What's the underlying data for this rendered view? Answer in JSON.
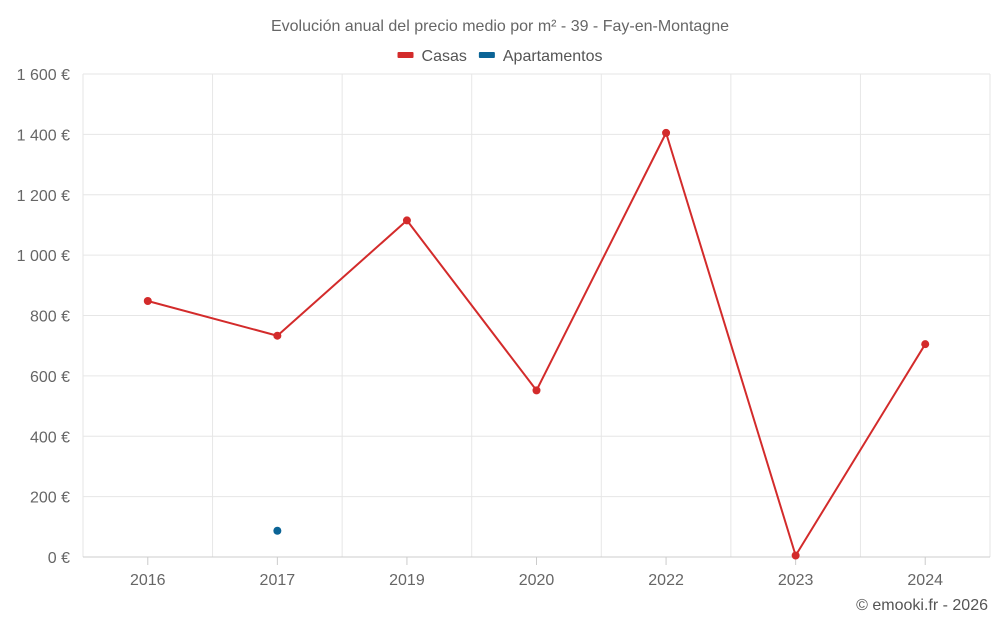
{
  "chart_data": {
    "type": "line",
    "title": "Evolución anual del precio medio por m² - 39 - Fay-en-Montagne",
    "categories": [
      "2016",
      "2017",
      "2019",
      "2020",
      "2022",
      "2023",
      "2024"
    ],
    "series": [
      {
        "name": "Casas",
        "color": "#d32b2b",
        "values": [
          848,
          733,
          1115,
          552,
          1405,
          5,
          705
        ]
      },
      {
        "name": "Apartamentos",
        "color": "#0b6496",
        "values": [
          null,
          87,
          null,
          null,
          null,
          null,
          null
        ]
      }
    ],
    "ylim": [
      0,
      1600
    ],
    "yticks": [
      0,
      200,
      400,
      600,
      800,
      1000,
      1200,
      1400,
      1600
    ],
    "ytick_labels": [
      "0 €",
      "200 €",
      "400 €",
      "600 €",
      "800 €",
      "1 000 €",
      "1 200 €",
      "1 400 €",
      "1 600 €"
    ],
    "xlabel": "",
    "ylabel": "",
    "legend_position": "top-center",
    "grid": true
  },
  "credit": "© emooki.fr - 2026"
}
